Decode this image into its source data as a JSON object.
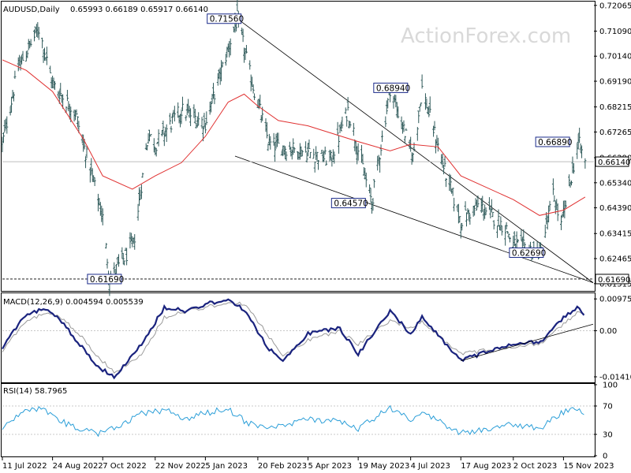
{
  "header": {
    "title": "AUDUSD,Daily",
    "ohlc": "0.65993 0.66189 0.65917 0.66140"
  },
  "watermark": "ActionForex.com",
  "chart_data": [
    {
      "type": "bar",
      "subtype": "ohlc",
      "symbol": "AUDUSD",
      "timeframe": "Daily",
      "ylim": [
        0.6127,
        0.7215
      ],
      "y_ticks": [
        "0.72065",
        "0.71090",
        "0.70140",
        "0.69190",
        "0.68215",
        "0.67265",
        "0.66290",
        "0.65340",
        "0.64390",
        "0.63415",
        "0.62465",
        "0.61515"
      ],
      "x_ticks": [
        "11 Jul 2022",
        "24 Aug 2022",
        "7 Oct 2022",
        "22 Nov 2022",
        "5 Jan 2023",
        "20 Feb 2023",
        "5 Apr 2023",
        "19 May 2023",
        "4 Jul 2023",
        "17 Aug 2023",
        "2 Oct 2023",
        "15 Nov 2023"
      ],
      "price_path": [
        [
          "11 Jul 2022",
          0.668
        ],
        [
          "25 Jul 2022",
          0.697
        ],
        [
          "12 Aug 2022",
          0.712
        ],
        [
          "24 Aug 2022",
          0.691
        ],
        [
          "13 Sep 2022",
          0.68
        ],
        [
          "7 Oct 2022",
          0.64
        ],
        [
          "13 Oct 2022",
          0.617
        ],
        [
          "3 Nov 2022",
          0.63
        ],
        [
          "16 Nov 2022",
          0.672
        ],
        [
          "22 Nov 2022",
          0.668
        ],
        [
          "15 Dec 2022",
          0.681
        ],
        [
          "5 Jan 2023",
          0.676
        ],
        [
          "2 Feb 2023",
          0.7156
        ],
        [
          "14 Feb 2023",
          0.693
        ],
        [
          "2 Mar 2023",
          0.668
        ],
        [
          "5 Apr 2023",
          0.665
        ],
        [
          "25 Apr 2023",
          0.662
        ],
        [
          "10 May 2023",
          0.681
        ],
        [
          "31 May 2023",
          0.6457
        ],
        [
          "16 Jun 2023",
          0.6894
        ],
        [
          "6 Jul 2023",
          0.663
        ],
        [
          "14 Jul 2023",
          0.6894
        ],
        [
          "3 Aug 2023",
          0.658
        ],
        [
          "17 Aug 2023",
          0.639
        ],
        [
          "2 Sep 2023",
          0.645
        ],
        [
          "26 Sep 2023",
          0.636
        ],
        [
          "2 Oct 2023",
          0.63
        ],
        [
          "26 Oct 2023",
          0.6269
        ],
        [
          "6 Nov 2023",
          0.649
        ],
        [
          "13 Nov 2023",
          0.637
        ],
        [
          "23 Nov 2023",
          0.658
        ],
        [
          "28 Nov 2023",
          0.6689
        ],
        [
          "4 Dec 2023",
          0.6614
        ]
      ],
      "moving_average_path": [
        [
          "11 Jul 2022",
          0.7
        ],
        [
          "1 Aug 2022",
          0.696
        ],
        [
          "24 Aug 2022",
          0.688
        ],
        [
          "20 Sep 2022",
          0.67
        ],
        [
          "7 Oct 2022",
          0.656
        ],
        [
          "2 Nov 2022",
          0.651
        ],
        [
          "22 Nov 2022",
          0.656
        ],
        [
          "15 Dec 2022",
          0.661
        ],
        [
          "5 Jan 2023",
          0.671
        ],
        [
          "25 Jan 2023",
          0.684
        ],
        [
          "8 Feb 2023",
          0.687
        ],
        [
          "20 Feb 2023",
          0.6825
        ],
        [
          "10 Mar 2023",
          0.677
        ],
        [
          "5 Apr 2023",
          0.675
        ],
        [
          "19 May 2023",
          0.669
        ],
        [
          "16 Jun 2023",
          0.6655
        ],
        [
          "4 Jul 2023",
          0.668
        ],
        [
          "28 Jul 2023",
          0.667
        ],
        [
          "17 Aug 2023",
          0.656
        ],
        [
          "2 Oct 2023",
          0.647
        ],
        [
          "25 Oct 2023",
          0.641
        ],
        [
          "15 Nov 2023",
          0.643
        ],
        [
          "4 Dec 2023",
          0.648
        ]
      ],
      "channel_lines": [
        {
          "from": [
            "2 Feb 2023",
            0.7156
          ],
          "to": [
            "11 Dec 2023",
            0.6155
          ]
        },
        {
          "from": [
            "31 Jan 2023",
            0.6635
          ],
          "to": [
            "11 Dec 2023",
            0.6155
          ]
        }
      ],
      "current_price_line": 0.6614,
      "support_line": 0.6169,
      "annotations": [
        "0.71560",
        "0.68940",
        "0.66890",
        "0.64570",
        "0.62690",
        "0.61690"
      ],
      "current_price_label": "0.66140",
      "support_label": "0.61690"
    },
    {
      "type": "line",
      "title": "MACD(12,26,9) 0.004594 0.005539",
      "ylim": [
        -0.0158,
        0.011
      ],
      "y_ticks": [
        "0.009751",
        "0.00",
        "-0.014107"
      ],
      "series": [
        {
          "name": "MACD",
          "points": [
            [
              "11 Jul 2022",
              -0.005
            ],
            [
              "29 Jul 2022",
              0.004
            ],
            [
              "16 Aug 2022",
              0.007
            ],
            [
              "1 Sep 2022",
              0.003
            ],
            [
              "16 Sep 2022",
              -0.004
            ],
            [
              "3 Oct 2022",
              -0.011
            ],
            [
              "17 Oct 2022",
              -0.014
            ],
            [
              "8 Nov 2022",
              -0.005
            ],
            [
              "30 Nov 2022",
              0.007
            ],
            [
              "20 Dec 2022",
              0.006
            ],
            [
              "5 Jan 2023",
              0.008
            ],
            [
              "25 Jan 2023",
              0.01
            ],
            [
              "9 Feb 2023",
              0.006
            ],
            [
              "28 Feb 2023",
              -0.005
            ],
            [
              "14 Mar 2023",
              -0.009
            ],
            [
              "5 Apr 2023",
              -0.001
            ],
            [
              "2 May 2023",
              0.001
            ],
            [
              "19 May 2023",
              -0.007
            ],
            [
              "16 Jun 2023",
              0.006
            ],
            [
              "4 Jul 2023",
              -0.001
            ],
            [
              "14 Jul 2023",
              0.004
            ],
            [
              "17 Aug 2023",
              -0.009
            ],
            [
              "2 Oct 2023",
              -0.004
            ],
            [
              "26 Oct 2023",
              -0.0035
            ],
            [
              "15 Nov 2023",
              0.004
            ],
            [
              "28 Nov 2023",
              0.0075
            ],
            [
              "4 Dec 2023",
              0.0046
            ]
          ]
        },
        {
          "name": "Signal",
          "points": [
            [
              "11 Jul 2022",
              -0.006
            ],
            [
              "29 Jul 2022",
              0.002
            ],
            [
              "16 Aug 2022",
              0.0055
            ],
            [
              "1 Sep 2022",
              0.004
            ],
            [
              "16 Sep 2022",
              -0.001
            ],
            [
              "3 Oct 2022",
              -0.008
            ],
            [
              "17 Oct 2022",
              -0.0125
            ],
            [
              "8 Nov 2022",
              -0.008
            ],
            [
              "30 Nov 2022",
              0.004
            ],
            [
              "20 Dec 2022",
              0.006
            ],
            [
              "5 Jan 2023",
              0.007
            ],
            [
              "25 Jan 2023",
              0.009
            ],
            [
              "9 Feb 2023",
              0.008
            ],
            [
              "28 Feb 2023",
              -0.001
            ],
            [
              "14 Mar 2023",
              -0.0075
            ],
            [
              "5 Apr 2023",
              -0.003
            ],
            [
              "2 May 2023",
              0.0
            ],
            [
              "19 May 2023",
              -0.004
            ],
            [
              "16 Jun 2023",
              0.003
            ],
            [
              "4 Jul 2023",
              0.001
            ],
            [
              "14 Jul 2023",
              0.0025
            ],
            [
              "17 Aug 2023",
              -0.007
            ],
            [
              "2 Oct 2023",
              -0.005
            ],
            [
              "26 Oct 2023",
              -0.004
            ],
            [
              "15 Nov 2023",
              0.002
            ],
            [
              "28 Nov 2023",
              0.006
            ],
            [
              "4 Dec 2023",
              0.0055
            ]
          ]
        }
      ],
      "trendline": {
        "from": [
          "17 Aug 2023",
          -0.0092
        ],
        "to": [
          "11 Dec 2023",
          0.002
        ]
      }
    },
    {
      "type": "line",
      "title": "RSI(14) 58.7965",
      "ylim": [
        0,
        100
      ],
      "y_ticks": [
        "100",
        "70",
        "30",
        "0"
      ],
      "levels": [
        70,
        30
      ],
      "series": [
        {
          "name": "RSI(14)",
          "points": [
            [
              "11 Jul 2022",
              40
            ],
            [
              "29 Jul 2022",
              62
            ],
            [
              "16 Aug 2022",
              66
            ],
            [
              "1 Sep 2022",
              48
            ],
            [
              "16 Sep 2022",
              38
            ],
            [
              "3 Oct 2022",
              30
            ],
            [
              "17 Oct 2022",
              38
            ],
            [
              "8 Nov 2022",
              58
            ],
            [
              "30 Nov 2022",
              64
            ],
            [
              "20 Dec 2022",
              52
            ],
            [
              "5 Jan 2023",
              60
            ],
            [
              "25 Jan 2023",
              66
            ],
            [
              "9 Feb 2023",
              48
            ],
            [
              "28 Feb 2023",
              36
            ],
            [
              "14 Mar 2023",
              42
            ],
            [
              "5 Apr 2023",
              52
            ],
            [
              "2 May 2023",
              48
            ],
            [
              "19 May 2023",
              38
            ],
            [
              "16 Jun 2023",
              68
            ],
            [
              "4 Jul 2023",
              50
            ],
            [
              "14 Jul 2023",
              62
            ],
            [
              "17 Aug 2023",
              32
            ],
            [
              "2 Oct 2023",
              44
            ],
            [
              "26 Oct 2023",
              38
            ],
            [
              "15 Nov 2023",
              62
            ],
            [
              "28 Nov 2023",
              68
            ],
            [
              "4 Dec 2023",
              58.8
            ]
          ]
        }
      ]
    }
  ]
}
